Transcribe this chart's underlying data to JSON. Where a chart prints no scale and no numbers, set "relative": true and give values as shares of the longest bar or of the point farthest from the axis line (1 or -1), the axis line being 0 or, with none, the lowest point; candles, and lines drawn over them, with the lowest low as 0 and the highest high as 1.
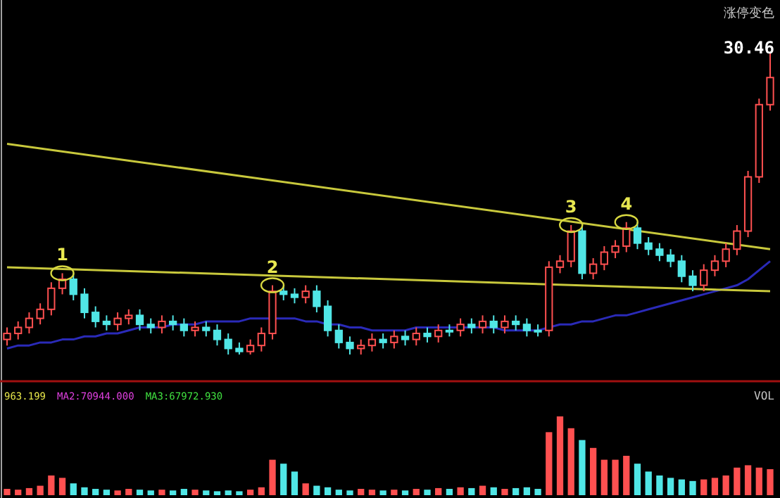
{
  "chart_data": [
    {
      "type": "candlestick",
      "relative": true,
      "categories": [
        null,
        null,
        null,
        null,
        null,
        null,
        null,
        null,
        null,
        null,
        null,
        null,
        null,
        null,
        null,
        null,
        null,
        null,
        null,
        null,
        null,
        null,
        null,
        null,
        null,
        null,
        null,
        null,
        null,
        null,
        null,
        null,
        null,
        null,
        null,
        null,
        null,
        null,
        null,
        null,
        null,
        null,
        null,
        null,
        null,
        null,
        null,
        null,
        null,
        null,
        null,
        null,
        null,
        null,
        null,
        null,
        null,
        null,
        null,
        null,
        null,
        null,
        null,
        null,
        null,
        null,
        null,
        null,
        null,
        null
      ],
      "ohlc": [
        [
          0.05,
          0.09,
          0.03,
          0.07
        ],
        [
          0.07,
          0.11,
          0.05,
          0.09
        ],
        [
          0.09,
          0.14,
          0.07,
          0.12
        ],
        [
          0.12,
          0.17,
          0.1,
          0.15
        ],
        [
          0.15,
          0.24,
          0.13,
          0.22
        ],
        [
          0.22,
          0.27,
          0.2,
          0.25
        ],
        [
          0.25,
          0.27,
          0.18,
          0.2
        ],
        [
          0.2,
          0.22,
          0.12,
          0.14
        ],
        [
          0.14,
          0.16,
          0.09,
          0.11
        ],
        [
          0.11,
          0.13,
          0.08,
          0.1
        ],
        [
          0.1,
          0.14,
          0.08,
          0.12
        ],
        [
          0.12,
          0.15,
          0.1,
          0.13
        ],
        [
          0.13,
          0.15,
          0.08,
          0.1
        ],
        [
          0.1,
          0.12,
          0.07,
          0.09
        ],
        [
          0.09,
          0.13,
          0.07,
          0.11
        ],
        [
          0.11,
          0.13,
          0.08,
          0.1
        ],
        [
          0.1,
          0.12,
          0.06,
          0.08
        ],
        [
          0.08,
          0.11,
          0.06,
          0.09
        ],
        [
          0.09,
          0.11,
          0.06,
          0.08
        ],
        [
          0.08,
          0.1,
          0.03,
          0.05
        ],
        [
          0.05,
          0.07,
          0.0,
          0.02
        ],
        [
          0.02,
          0.04,
          0.0,
          0.01
        ],
        [
          0.01,
          0.05,
          0.0,
          0.03
        ],
        [
          0.03,
          0.09,
          0.01,
          0.07
        ],
        [
          0.07,
          0.23,
          0.05,
          0.21
        ],
        [
          0.21,
          0.23,
          0.18,
          0.2
        ],
        [
          0.2,
          0.22,
          0.17,
          0.19
        ],
        [
          0.19,
          0.23,
          0.17,
          0.21
        ],
        [
          0.21,
          0.23,
          0.14,
          0.16
        ],
        [
          0.16,
          0.18,
          0.06,
          0.08
        ],
        [
          0.08,
          0.1,
          0.02,
          0.04
        ],
        [
          0.04,
          0.06,
          0.0,
          0.02
        ],
        [
          0.02,
          0.05,
          0.0,
          0.03
        ],
        [
          0.03,
          0.07,
          0.01,
          0.05
        ],
        [
          0.05,
          0.07,
          0.02,
          0.04
        ],
        [
          0.04,
          0.08,
          0.02,
          0.06
        ],
        [
          0.06,
          0.08,
          0.03,
          0.05
        ],
        [
          0.05,
          0.09,
          0.03,
          0.07
        ],
        [
          0.07,
          0.09,
          0.04,
          0.06
        ],
        [
          0.06,
          0.1,
          0.04,
          0.08
        ],
        [
          0.08,
          0.1,
          0.06,
          0.08
        ],
        [
          0.08,
          0.12,
          0.06,
          0.1
        ],
        [
          0.1,
          0.12,
          0.07,
          0.09
        ],
        [
          0.09,
          0.13,
          0.07,
          0.11
        ],
        [
          0.11,
          0.13,
          0.07,
          0.09
        ],
        [
          0.09,
          0.13,
          0.07,
          0.11
        ],
        [
          0.11,
          0.13,
          0.08,
          0.1
        ],
        [
          0.1,
          0.12,
          0.06,
          0.08
        ],
        [
          0.08,
          0.1,
          0.06,
          0.08
        ],
        [
          0.08,
          0.31,
          0.06,
          0.29
        ],
        [
          0.29,
          0.33,
          0.27,
          0.31
        ],
        [
          0.31,
          0.43,
          0.29,
          0.41
        ],
        [
          0.41,
          0.43,
          0.25,
          0.27
        ],
        [
          0.27,
          0.32,
          0.25,
          0.3
        ],
        [
          0.3,
          0.36,
          0.28,
          0.34
        ],
        [
          0.34,
          0.38,
          0.32,
          0.36
        ],
        [
          0.36,
          0.44,
          0.34,
          0.42
        ],
        [
          0.42,
          0.44,
          0.35,
          0.37
        ],
        [
          0.37,
          0.39,
          0.33,
          0.35
        ],
        [
          0.35,
          0.37,
          0.31,
          0.33
        ],
        [
          0.33,
          0.35,
          0.29,
          0.31
        ],
        [
          0.31,
          0.33,
          0.24,
          0.26
        ],
        [
          0.26,
          0.28,
          0.21,
          0.23
        ],
        [
          0.23,
          0.3,
          0.21,
          0.28
        ],
        [
          0.28,
          0.33,
          0.26,
          0.31
        ],
        [
          0.31,
          0.37,
          0.29,
          0.35
        ],
        [
          0.35,
          0.43,
          0.33,
          0.41
        ],
        [
          0.41,
          0.61,
          0.39,
          0.59
        ],
        [
          0.59,
          0.85,
          0.57,
          0.83
        ],
        [
          0.83,
          1.0,
          0.81,
          0.92
        ]
      ],
      "colors": [
        "#ff5050",
        "#ff5050",
        "#ff5050",
        "#ff5050",
        "#ff5050",
        "#ff5050",
        "#50e6e6",
        "#50e6e6",
        "#50e6e6",
        "#50e6e6",
        "#ff5050",
        "#ff5050",
        "#50e6e6",
        "#50e6e6",
        "#ff5050",
        "#50e6e6",
        "#50e6e6",
        "#ff5050",
        "#50e6e6",
        "#50e6e6",
        "#50e6e6",
        "#50e6e6",
        "#ff5050",
        "#ff5050",
        "#ff5050",
        "#50e6e6",
        "#50e6e6",
        "#ff5050",
        "#50e6e6",
        "#50e6e6",
        "#50e6e6",
        "#50e6e6",
        "#ff5050",
        "#ff5050",
        "#50e6e6",
        "#ff5050",
        "#50e6e6",
        "#ff5050",
        "#50e6e6",
        "#ff5050",
        "#50e6e6",
        "#ff5050",
        "#50e6e6",
        "#ff5050",
        "#50e6e6",
        "#ff5050",
        "#50e6e6",
        "#50e6e6",
        "#50e6e6",
        "#ff5050",
        "#ff5050",
        "#ff5050",
        "#50e6e6",
        "#ff5050",
        "#ff5050",
        "#ff5050",
        "#ff5050",
        "#50e6e6",
        "#50e6e6",
        "#50e6e6",
        "#50e6e6",
        "#50e6e6",
        "#50e6e6",
        "#ff5050",
        "#ff5050",
        "#ff5050",
        "#ff5050",
        "#ff5050",
        "#ff5050",
        "#ff5050"
      ],
      "series": [
        {
          "type": "line",
          "color": "#2a2ab8",
          "values": [
            0.02,
            0.03,
            0.03,
            0.04,
            0.04,
            0.05,
            0.05,
            0.06,
            0.06,
            0.07,
            0.07,
            0.08,
            0.09,
            0.09,
            0.09,
            0.1,
            0.1,
            0.1,
            0.11,
            0.11,
            0.11,
            0.11,
            0.12,
            0.12,
            0.12,
            0.12,
            0.12,
            0.11,
            0.11,
            0.1,
            0.1,
            0.09,
            0.09,
            0.08,
            0.08,
            0.08,
            0.08,
            0.09,
            0.09,
            0.09,
            0.09,
            0.09,
            0.09,
            0.09,
            0.09,
            0.08,
            0.08,
            0.08,
            0.08,
            0.09,
            0.1,
            0.1,
            0.11,
            0.11,
            0.12,
            0.13,
            0.13,
            0.14,
            0.15,
            0.16,
            0.17,
            0.18,
            0.19,
            0.2,
            0.21,
            0.22,
            0.23,
            0.25,
            0.28,
            0.31
          ]
        },
        {
          "type": "line",
          "color": "#c8c83c",
          "values": [
            0.7,
            null,
            null,
            null,
            null,
            null,
            null,
            null,
            null,
            null,
            null,
            null,
            null,
            null,
            null,
            null,
            null,
            null,
            null,
            null,
            null,
            null,
            null,
            null,
            null,
            null,
            null,
            null,
            null,
            null,
            null,
            null,
            null,
            null,
            null,
            null,
            null,
            null,
            null,
            null,
            null,
            null,
            null,
            null,
            null,
            null,
            null,
            null,
            null,
            null,
            null,
            null,
            null,
            null,
            null,
            null,
            null,
            null,
            null,
            null,
            null,
            null,
            null,
            null,
            null,
            null,
            null,
            null,
            null,
            0.35
          ]
        },
        {
          "type": "line",
          "color": "#c8c83c",
          "values": [
            0.29,
            null,
            null,
            null,
            null,
            null,
            null,
            null,
            null,
            null,
            null,
            null,
            null,
            null,
            null,
            null,
            null,
            null,
            null,
            null,
            null,
            null,
            null,
            null,
            null,
            null,
            null,
            null,
            null,
            null,
            null,
            null,
            null,
            null,
            null,
            null,
            null,
            null,
            null,
            null,
            null,
            null,
            null,
            null,
            null,
            null,
            null,
            null,
            null,
            null,
            null,
            null,
            null,
            null,
            null,
            null,
            null,
            null,
            null,
            null,
            null,
            null,
            null,
            null,
            null,
            null,
            null,
            null,
            null,
            0.21
          ]
        }
      ],
      "annotations": [
        "涨停变色",
        "30.46",
        {
          "text": "1",
          "y": 0.27
        },
        {
          "text": "2",
          "y": 0.23
        },
        {
          "text": "3",
          "y": 0.43
        },
        {
          "text": "4",
          "y": 0.44
        }
      ]
    },
    {
      "type": "bar",
      "relative": true,
      "categories": [
        null,
        null,
        null,
        null,
        null,
        null,
        null,
        null,
        null,
        null,
        null,
        null,
        null,
        null,
        null,
        null,
        null,
        null,
        null,
        null,
        null,
        null,
        null,
        null,
        null,
        null,
        null,
        null,
        null,
        null,
        null,
        null,
        null,
        null,
        null,
        null,
        null,
        null,
        null,
        null,
        null,
        null,
        null,
        null,
        null,
        null,
        null,
        null,
        null,
        null,
        null,
        null,
        null,
        null,
        null,
        null,
        null,
        null,
        null,
        null,
        null,
        null,
        null,
        null,
        null,
        null,
        null,
        null,
        null,
        null
      ],
      "values": [
        0.08,
        0.07,
        0.09,
        0.12,
        0.25,
        0.22,
        0.15,
        0.1,
        0.08,
        0.07,
        0.06,
        0.08,
        0.07,
        0.06,
        0.07,
        0.06,
        0.08,
        0.07,
        0.06,
        0.05,
        0.06,
        0.05,
        0.07,
        0.1,
        0.45,
        0.4,
        0.3,
        0.15,
        0.12,
        0.1,
        0.07,
        0.06,
        0.08,
        0.07,
        0.06,
        0.07,
        0.06,
        0.08,
        0.07,
        0.09,
        0.08,
        0.1,
        0.09,
        0.12,
        0.1,
        0.08,
        0.09,
        0.1,
        0.08,
        0.8,
        1.0,
        0.85,
        0.7,
        0.6,
        0.45,
        0.45,
        0.5,
        0.4,
        0.3,
        0.25,
        0.22,
        0.2,
        0.18,
        0.2,
        0.22,
        0.25,
        0.35,
        0.38,
        0.35,
        0.33
      ],
      "colors": [
        "#ff5050",
        "#ff5050",
        "#ff5050",
        "#ff5050",
        "#ff5050",
        "#ff5050",
        "#50e6e6",
        "#50e6e6",
        "#50e6e6",
        "#50e6e6",
        "#ff5050",
        "#ff5050",
        "#50e6e6",
        "#50e6e6",
        "#ff5050",
        "#50e6e6",
        "#50e6e6",
        "#ff5050",
        "#50e6e6",
        "#50e6e6",
        "#50e6e6",
        "#50e6e6",
        "#ff5050",
        "#ff5050",
        "#ff5050",
        "#50e6e6",
        "#50e6e6",
        "#ff5050",
        "#50e6e6",
        "#50e6e6",
        "#50e6e6",
        "#50e6e6",
        "#ff5050",
        "#ff5050",
        "#50e6e6",
        "#ff5050",
        "#50e6e6",
        "#ff5050",
        "#50e6e6",
        "#ff5050",
        "#50e6e6",
        "#ff5050",
        "#50e6e6",
        "#ff5050",
        "#50e6e6",
        "#ff5050",
        "#50e6e6",
        "#50e6e6",
        "#50e6e6",
        "#ff5050",
        "#ff5050",
        "#ff5050",
        "#50e6e6",
        "#ff5050",
        "#ff5050",
        "#ff5050",
        "#ff5050",
        "#50e6e6",
        "#50e6e6",
        "#50e6e6",
        "#50e6e6",
        "#50e6e6",
        "#50e6e6",
        "#ff5050",
        "#ff5050",
        "#ff5050",
        "#ff5050",
        "#ff5050",
        "#ff5050",
        "#ff5050"
      ],
      "annotations": [
        "963.199",
        "MA2:70944.000",
        "MA3:67972.930",
        "VOL"
      ]
    }
  ]
}
